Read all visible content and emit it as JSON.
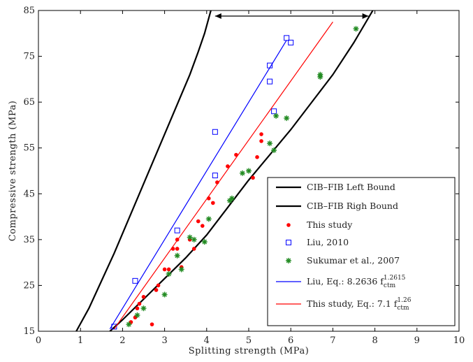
{
  "chart_data": {
    "type": "scatter",
    "xlabel": "Splitting strength (MPa)",
    "ylabel": "Compressive strength (MPa)",
    "xlim": [
      0,
      10
    ],
    "ylim": [
      15,
      85
    ],
    "x_ticks": [
      0,
      1,
      2,
      3,
      4,
      5,
      6,
      7,
      8,
      9,
      10
    ],
    "y_ticks": [
      15,
      25,
      35,
      45,
      55,
      65,
      75,
      85
    ],
    "x_tick_labels": [
      "0",
      "1",
      "2",
      "3",
      "4",
      "5",
      "6",
      "7",
      "8",
      "9",
      "10"
    ],
    "y_tick_labels": [
      "15",
      "25",
      "35",
      "45",
      "55",
      "65",
      "75",
      "85"
    ],
    "grid": false,
    "legend_position": "lower-right",
    "annotation": {
      "type": "double-arrow",
      "y": 85,
      "x_start": 4.1,
      "x_end": 7.95
    },
    "series": [
      {
        "name": "CIB–FIB Left Bound",
        "kind": "line",
        "color": "#000000",
        "x": [
          0.9,
          1.2,
          1.5,
          1.8,
          2.1,
          2.4,
          2.7,
          3.0,
          3.3,
          3.6,
          3.8,
          3.95,
          4.1
        ],
        "y": [
          15,
          20,
          26,
          32,
          38.5,
          45,
          51.5,
          58,
          64.5,
          71,
          76,
          80,
          85
        ]
      },
      {
        "name": "CIB–FIB Righ Bound",
        "kind": "line",
        "color": "#000000",
        "x": [
          1.7,
          2.0,
          2.5,
          3.0,
          3.5,
          4.0,
          4.5,
          5.0,
          5.5,
          6.0,
          6.5,
          7.0,
          7.5,
          7.95
        ],
        "y": [
          15,
          17.5,
          22,
          26.5,
          31,
          36,
          42,
          48,
          53.5,
          59,
          65,
          71,
          78,
          85
        ]
      },
      {
        "name": "This study",
        "kind": "scatter",
        "marker": "dot",
        "color": "#ff0000",
        "x": [
          2.2,
          2.3,
          2.35,
          2.4,
          2.5,
          2.7,
          2.8,
          2.85,
          3.0,
          3.1,
          3.2,
          3.3,
          3.3,
          3.4,
          3.6,
          3.7,
          3.8,
          3.9,
          4.05,
          4.15,
          4.25,
          4.5,
          4.7,
          5.1,
          5.2,
          5.3,
          5.3
        ],
        "y": [
          17,
          18,
          20,
          21,
          22.5,
          16.5,
          24,
          25,
          28.5,
          28.5,
          33,
          33,
          35,
          29,
          35,
          33,
          39,
          38,
          44,
          43,
          47.5,
          51,
          53.5,
          48.5,
          53,
          56.5,
          58
        ]
      },
      {
        "name": "Liu, 2010",
        "kind": "scatter",
        "marker": "square",
        "color": "#0000ff",
        "x": [
          1.8,
          2.3,
          3.3,
          4.2,
          4.2,
          5.5,
          5.5,
          5.6,
          5.9,
          6.0
        ],
        "y": [
          16,
          26,
          37,
          49,
          58.5,
          69.5,
          73,
          63,
          79,
          78
        ]
      },
      {
        "name": "Sukumar et al., 2007",
        "kind": "scatter",
        "marker": "star",
        "color": "#228b22",
        "x": [
          2.15,
          2.35,
          2.5,
          3.0,
          3.1,
          3.3,
          3.4,
          3.6,
          3.7,
          3.95,
          4.05,
          4.55,
          4.6,
          4.85,
          5.0,
          5.5,
          5.6,
          5.65,
          5.9,
          6.7,
          6.7,
          7.55
        ],
        "y": [
          16.5,
          18.5,
          20,
          23,
          27.5,
          31.5,
          28.5,
          35.5,
          35,
          34.5,
          39.5,
          43.5,
          44,
          49.5,
          50,
          56,
          54.5,
          62,
          61.5,
          70.5,
          71,
          81
        ]
      },
      {
        "name": "Liu, Eq.: 8.2636 f",
        "name_superscript": "1.2615",
        "name_subscript": "ctm",
        "kind": "line",
        "color": "#0000ff",
        "x": [
          1.7,
          5.9
        ],
        "y": [
          15.5,
          78.5
        ]
      },
      {
        "name": "This study, Eq.: 7.1 f",
        "name_superscript": "1.26",
        "name_subscript": "ctm",
        "kind": "line",
        "color": "#ff0000",
        "x": [
          1.8,
          7.0
        ],
        "y": [
          15.5,
          82.5
        ]
      }
    ]
  }
}
